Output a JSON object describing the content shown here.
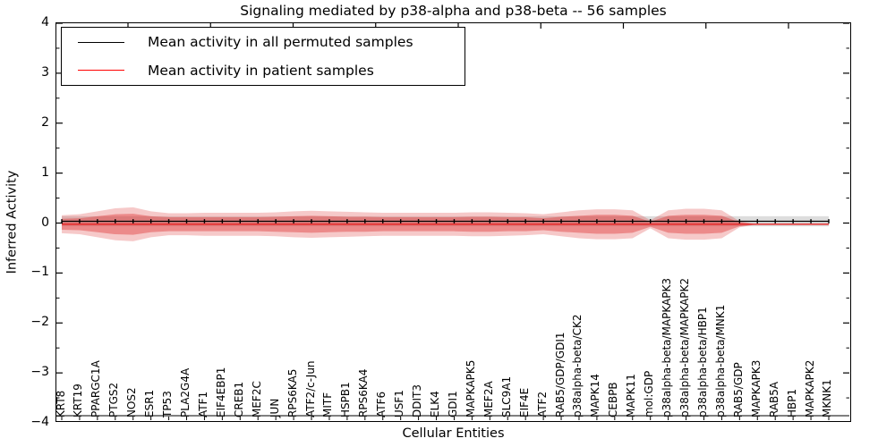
{
  "title": "Signaling mediated by p38-alpha and p38-beta -- 56 samples",
  "axes": {
    "xlabel": "Cellular Entities",
    "ylabel": "Inferred Activity",
    "y_tick_labels": [
      "4",
      "3",
      "2",
      "1",
      "0",
      "−1",
      "−2",
      "−3",
      "−4"
    ],
    "y_range": [
      -4,
      4
    ]
  },
  "legend": {
    "entries": [
      {
        "label": "Mean activity in all permuted samples",
        "color": "#000000"
      },
      {
        "label": "Mean activity in patient samples",
        "color": "#ff0000"
      }
    ]
  },
  "colors": {
    "permuted_line": "#000000",
    "patient_line": "#e62222",
    "patient_band_inner": "rgba(222,45,45,0.40)",
    "patient_band_outer": "rgba(222,45,45,0.26)",
    "permuted_band": "rgba(165,165,165,0.38)",
    "axis": "#000000"
  },
  "chart_data": {
    "type": "area",
    "title": "Signaling mediated by p38-alpha and p38-beta -- 56 samples",
    "xlabel": "Cellular Entities",
    "ylabel": "Inferred Activity",
    "ylim": [
      -4,
      4
    ],
    "grid": false,
    "legend_position": "upper left",
    "categories": [
      "KRT8",
      "KRT19",
      "PPARGC1A",
      "PTGS2",
      "NOS2",
      "ESR1",
      "TP53",
      "PLA2G4A",
      "ATF1",
      "EIF4EBP1",
      "CREB1",
      "MEF2C",
      "JUN",
      "RPS6KA5",
      "ATF2/c-Jun",
      "MITF",
      "HSPB1",
      "RPS6KA4",
      "ATF6",
      "USF1",
      "DDIT3",
      "ELK4",
      "GDI1",
      "MAPKAPK5",
      "MEF2A",
      "SLC9A1",
      "EIF4E",
      "ATF2",
      "RAB5/GDP/GDI1",
      "p38alpha-beta/CK2",
      "MAPK14",
      "CEBPB",
      "MAPK11",
      "mol:GDP",
      "p38alpha-beta/MAPKAPK3",
      "p38alpha-beta/MAPKAPK2",
      "p38alpha-beta/HBP1",
      "p38alpha-beta/MNK1",
      "RAB5/GDP",
      "MAPKAPK3",
      "RAB5A",
      "HBP1",
      "MAPKAPK2",
      "MKNK1"
    ],
    "series": [
      {
        "name": "Mean activity in all permuted samples",
        "mean_constant": 0.0,
        "band_halfwidth_constant": 0.1
      },
      {
        "name": "Mean activity in patient samples",
        "mean_constant": -0.06,
        "band_outer_halfwidth": [
          0.18,
          0.2,
          0.26,
          0.32,
          0.34,
          0.26,
          0.22,
          0.22,
          0.23,
          0.23,
          0.23,
          0.23,
          0.24,
          0.26,
          0.27,
          0.26,
          0.25,
          0.24,
          0.23,
          0.23,
          0.23,
          0.23,
          0.23,
          0.24,
          0.24,
          0.23,
          0.22,
          0.2,
          0.24,
          0.28,
          0.3,
          0.3,
          0.28,
          0.08,
          0.28,
          0.31,
          0.31,
          0.28,
          0.06,
          0,
          0,
          0,
          0,
          0
        ],
        "band_inner_halfwidth": [
          0.11,
          0.12,
          0.16,
          0.2,
          0.21,
          0.16,
          0.14,
          0.14,
          0.14,
          0.14,
          0.14,
          0.14,
          0.15,
          0.16,
          0.17,
          0.16,
          0.15,
          0.15,
          0.14,
          0.14,
          0.14,
          0.14,
          0.14,
          0.15,
          0.15,
          0.14,
          0.14,
          0.12,
          0.15,
          0.17,
          0.19,
          0.19,
          0.17,
          0.05,
          0.17,
          0.19,
          0.19,
          0.17,
          0.04,
          0,
          0,
          0,
          0,
          0
        ]
      }
    ]
  }
}
